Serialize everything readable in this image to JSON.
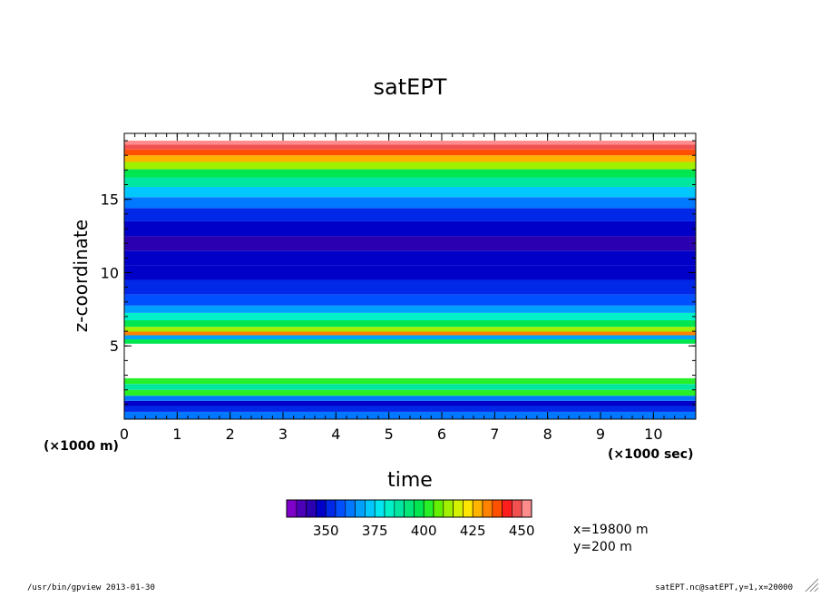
{
  "chart_data": {
    "type": "heatmap",
    "title": "satEPT",
    "xlabel": "time",
    "x_unit_label": "(×1000 sec)",
    "ylabel": "z-coordinate",
    "y_unit_label": "(×1000 m)",
    "xlim": [
      0,
      10.8
    ],
    "ylim": [
      0,
      19.5
    ],
    "x_ticks": [
      0,
      1,
      2,
      3,
      4,
      5,
      6,
      7,
      8,
      9,
      10
    ],
    "x_tick_labels": [
      "0",
      "1",
      "2",
      "3",
      "4",
      "5",
      "6",
      "7",
      "8",
      "9",
      "10"
    ],
    "y_ticks": [
      5,
      10,
      15
    ],
    "y_tick_labels": [
      "5",
      "10",
      "15"
    ],
    "z_profile": [
      {
        "z": 0.3,
        "value": 362
      },
      {
        "z": 0.7,
        "value": 350
      },
      {
        "z": 1.1,
        "value": 345
      },
      {
        "z": 1.4,
        "value": 360
      },
      {
        "z": 1.8,
        "value": 400
      },
      {
        "z": 2.2,
        "value": 387
      },
      {
        "z": 2.6,
        "value": 402
      },
      {
        "z": 3.0,
        "value": 1000
      },
      {
        "z": 3.5,
        "value": 1000
      },
      {
        "z": 4.0,
        "value": 1000
      },
      {
        "z": 4.5,
        "value": 1000
      },
      {
        "z": 5.0,
        "value": 1000
      },
      {
        "z": 5.3,
        "value": 395
      },
      {
        "z": 5.6,
        "value": 365
      },
      {
        "z": 5.85,
        "value": 432
      },
      {
        "z": 6.1,
        "value": 412
      },
      {
        "z": 6.5,
        "value": 397
      },
      {
        "z": 7.0,
        "value": 382
      },
      {
        "z": 7.5,
        "value": 368
      },
      {
        "z": 8.0,
        "value": 358
      },
      {
        "z": 9.0,
        "value": 352
      },
      {
        "z": 10.0,
        "value": 347
      },
      {
        "z": 11.0,
        "value": 345
      },
      {
        "z": 12.0,
        "value": 343
      },
      {
        "z": 13.0,
        "value": 347
      },
      {
        "z": 14.0,
        "value": 353
      },
      {
        "z": 14.8,
        "value": 362
      },
      {
        "z": 15.5,
        "value": 372
      },
      {
        "z": 16.2,
        "value": 385
      },
      {
        "z": 16.8,
        "value": 397
      },
      {
        "z": 17.3,
        "value": 410
      },
      {
        "z": 17.8,
        "value": 425
      },
      {
        "z": 18.2,
        "value": 437
      },
      {
        "z": 18.6,
        "value": 445
      },
      {
        "z": 18.85,
        "value": 450
      }
    ],
    "colorbar": {
      "levels": [
        335,
        340,
        345,
        350,
        355,
        360,
        365,
        370,
        375,
        380,
        385,
        390,
        395,
        400,
        405,
        410,
        415,
        420,
        425,
        430,
        435,
        440,
        445,
        450
      ],
      "colors": [
        "#7f00c8",
        "#4c00b8",
        "#2a00b0",
        "#0000c8",
        "#0028e6",
        "#0050ff",
        "#0078ff",
        "#00a0ff",
        "#00c8ff",
        "#00e6f0",
        "#00f0c8",
        "#00e6a0",
        "#00e678",
        "#00e650",
        "#28f028",
        "#64f000",
        "#a0f000",
        "#d2f000",
        "#ffe600",
        "#ffb400",
        "#ff8200",
        "#ff5000",
        "#ff1e1e",
        "#f05050",
        "#ff8c8c"
      ],
      "tick_labels": [
        "350",
        "375",
        "400",
        "425",
        "450"
      ],
      "tick_values": [
        350,
        375,
        400,
        425,
        450
      ]
    },
    "annotations": [
      "x=19800 m",
      "y=200 m"
    ],
    "legend_placement": "bottom"
  },
  "footer": {
    "left": "/usr/bin/gpview  2013-01-30",
    "right": "satEPT.nc@satEPT,y=1,x=20000"
  }
}
